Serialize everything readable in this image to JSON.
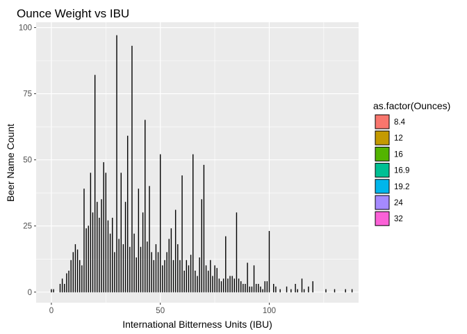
{
  "chart_data": {
    "type": "bar",
    "title": "Ounce Weight vs IBU",
    "xlabel": "International Bitterness Units (IBU)",
    "ylabel": "Beer Name Count",
    "xlim": [
      -7,
      141
    ],
    "ylim": [
      -4,
      102
    ],
    "x_ticks": [
      0,
      50,
      100
    ],
    "x_tick_labels": [
      "0",
      "50",
      "100"
    ],
    "y_ticks": [
      0,
      25,
      50,
      75,
      100
    ],
    "y_tick_labels": [
      "0",
      "25",
      "50",
      "75",
      "100"
    ],
    "grid": true,
    "legend_position": "right",
    "legend": {
      "title": "as.factor(Ounces)",
      "items": [
        {
          "label": "8.4",
          "color": "#F8766D"
        },
        {
          "label": "12",
          "color": "#C49A00"
        },
        {
          "label": "16",
          "color": "#53B400"
        },
        {
          "label": "16.9",
          "color": "#00C094"
        },
        {
          "label": "19.2",
          "color": "#00B6EB"
        },
        {
          "label": "24",
          "color": "#A58AFF"
        },
        {
          "label": "32",
          "color": "#FB61D7"
        }
      ]
    },
    "bar_outline_color": "#000000",
    "bars": [
      {
        "x": 0,
        "y": 1
      },
      {
        "x": 1,
        "y": 1
      },
      {
        "x": 4,
        "y": 3
      },
      {
        "x": 5,
        "y": 5
      },
      {
        "x": 6,
        "y": 3
      },
      {
        "x": 7,
        "y": 7
      },
      {
        "x": 8,
        "y": 8
      },
      {
        "x": 9,
        "y": 12
      },
      {
        "x": 10,
        "y": 15
      },
      {
        "x": 11,
        "y": 18
      },
      {
        "x": 12,
        "y": 16
      },
      {
        "x": 13,
        "y": 12
      },
      {
        "x": 14,
        "y": 10
      },
      {
        "x": 15,
        "y": 39
      },
      {
        "x": 16,
        "y": 24
      },
      {
        "x": 17,
        "y": 25
      },
      {
        "x": 18,
        "y": 45
      },
      {
        "x": 19,
        "y": 30
      },
      {
        "x": 20,
        "y": 82
      },
      {
        "x": 21,
        "y": 34
      },
      {
        "x": 22,
        "y": 28
      },
      {
        "x": 23,
        "y": 35
      },
      {
        "x": 24,
        "y": 49
      },
      {
        "x": 25,
        "y": 45
      },
      {
        "x": 26,
        "y": 27
      },
      {
        "x": 27,
        "y": 22
      },
      {
        "x": 28,
        "y": 28
      },
      {
        "x": 29,
        "y": 15
      },
      {
        "x": 30,
        "y": 97
      },
      {
        "x": 31,
        "y": 20
      },
      {
        "x": 32,
        "y": 45
      },
      {
        "x": 33,
        "y": 18
      },
      {
        "x": 34,
        "y": 34
      },
      {
        "x": 35,
        "y": 59
      },
      {
        "x": 36,
        "y": 17
      },
      {
        "x": 37,
        "y": 93
      },
      {
        "x": 38,
        "y": 22
      },
      {
        "x": 39,
        "y": 13
      },
      {
        "x": 40,
        "y": 39
      },
      {
        "x": 41,
        "y": 17
      },
      {
        "x": 42,
        "y": 30
      },
      {
        "x": 43,
        "y": 65
      },
      {
        "x": 44,
        "y": 19
      },
      {
        "x": 45,
        "y": 40
      },
      {
        "x": 46,
        "y": 15
      },
      {
        "x": 47,
        "y": 12
      },
      {
        "x": 48,
        "y": 18
      },
      {
        "x": 49,
        "y": 15
      },
      {
        "x": 50,
        "y": 52
      },
      {
        "x": 51,
        "y": 10
      },
      {
        "x": 52,
        "y": 12
      },
      {
        "x": 53,
        "y": 15
      },
      {
        "x": 54,
        "y": 20
      },
      {
        "x": 55,
        "y": 24
      },
      {
        "x": 56,
        "y": 12
      },
      {
        "x": 57,
        "y": 31
      },
      {
        "x": 58,
        "y": 18
      },
      {
        "x": 59,
        "y": 12
      },
      {
        "x": 60,
        "y": 44
      },
      {
        "x": 61,
        "y": 8
      },
      {
        "x": 62,
        "y": 12
      },
      {
        "x": 63,
        "y": 10
      },
      {
        "x": 64,
        "y": 14
      },
      {
        "x": 65,
        "y": 52
      },
      {
        "x": 66,
        "y": 8
      },
      {
        "x": 67,
        "y": 6
      },
      {
        "x": 68,
        "y": 13
      },
      {
        "x": 69,
        "y": 35
      },
      {
        "x": 70,
        "y": 48
      },
      {
        "x": 71,
        "y": 10
      },
      {
        "x": 72,
        "y": 8
      },
      {
        "x": 73,
        "y": 12
      },
      {
        "x": 74,
        "y": 6
      },
      {
        "x": 75,
        "y": 10
      },
      {
        "x": 76,
        "y": 9
      },
      {
        "x": 77,
        "y": 5
      },
      {
        "x": 78,
        "y": 4
      },
      {
        "x": 79,
        "y": 5
      },
      {
        "x": 80,
        "y": 21
      },
      {
        "x": 81,
        "y": 5
      },
      {
        "x": 82,
        "y": 6
      },
      {
        "x": 83,
        "y": 6
      },
      {
        "x": 84,
        "y": 5
      },
      {
        "x": 85,
        "y": 30
      },
      {
        "x": 86,
        "y": 5
      },
      {
        "x": 87,
        "y": 4
      },
      {
        "x": 88,
        "y": 3
      },
      {
        "x": 89,
        "y": 3
      },
      {
        "x": 90,
        "y": 11
      },
      {
        "x": 91,
        "y": 2
      },
      {
        "x": 92,
        "y": 2
      },
      {
        "x": 93,
        "y": 10
      },
      {
        "x": 94,
        "y": 3
      },
      {
        "x": 95,
        "y": 3
      },
      {
        "x": 96,
        "y": 2
      },
      {
        "x": 97,
        "y": 1
      },
      {
        "x": 98,
        "y": 4
      },
      {
        "x": 99,
        "y": 4
      },
      {
        "x": 100,
        "y": 23
      },
      {
        "x": 102,
        "y": 3
      },
      {
        "x": 103,
        "y": 2
      },
      {
        "x": 105,
        "y": 1
      },
      {
        "x": 108,
        "y": 2
      },
      {
        "x": 110,
        "y": 1
      },
      {
        "x": 112,
        "y": 3
      },
      {
        "x": 113,
        "y": 1
      },
      {
        "x": 115,
        "y": 5
      },
      {
        "x": 116,
        "y": 1
      },
      {
        "x": 118,
        "y": 2
      },
      {
        "x": 120,
        "y": 4
      },
      {
        "x": 126,
        "y": 1
      },
      {
        "x": 130,
        "y": 1
      },
      {
        "x": 135,
        "y": 1
      },
      {
        "x": 138,
        "y": 1
      }
    ]
  }
}
